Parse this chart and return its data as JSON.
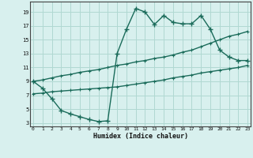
{
  "line1_x": [
    0,
    1,
    2,
    3,
    4,
    5,
    6,
    7,
    8,
    9,
    10,
    11,
    12,
    13,
    14,
    15,
    16,
    17,
    18,
    19,
    20,
    21,
    22,
    23
  ],
  "line1_y": [
    9,
    8,
    6.5,
    4.8,
    4.3,
    3.9,
    3.5,
    3.2,
    3.3,
    13.0,
    16.5,
    19.5,
    19.0,
    17.2,
    18.5,
    17.5,
    17.3,
    17.3,
    18.5,
    16.5,
    13.5,
    12.5,
    12.0,
    12.0
  ],
  "line2_x": [
    0,
    1,
    2,
    3,
    4,
    5,
    6,
    7,
    8,
    9,
    10,
    11,
    12,
    13,
    14,
    15,
    16,
    17,
    18,
    19,
    20,
    21,
    22,
    23
  ],
  "line2_y": [
    9.0,
    9.2,
    9.5,
    9.8,
    10.0,
    10.3,
    10.5,
    10.7,
    11.0,
    11.3,
    11.5,
    11.8,
    12.0,
    12.3,
    12.5,
    12.8,
    13.2,
    13.5,
    14.0,
    14.5,
    15.0,
    15.5,
    15.8,
    16.2
  ],
  "line3_x": [
    0,
    1,
    2,
    3,
    4,
    5,
    6,
    7,
    8,
    9,
    10,
    11,
    12,
    13,
    14,
    15,
    16,
    17,
    18,
    19,
    20,
    21,
    22,
    23
  ],
  "line3_y": [
    7.2,
    7.3,
    7.5,
    7.6,
    7.7,
    7.8,
    7.9,
    8.0,
    8.1,
    8.2,
    8.4,
    8.6,
    8.8,
    9.0,
    9.2,
    9.5,
    9.7,
    9.9,
    10.2,
    10.4,
    10.6,
    10.8,
    11.0,
    11.3
  ],
  "line_color": "#1a6b5a",
  "bg_color": "#d8f0ee",
  "grid_color": "#b0d8d2",
  "xlabel": "Humidex (Indice chaleur)",
  "xticks": [
    0,
    1,
    2,
    3,
    4,
    5,
    6,
    7,
    8,
    9,
    10,
    11,
    12,
    13,
    14,
    15,
    16,
    17,
    18,
    19,
    20,
    21,
    22,
    23
  ],
  "yticks": [
    3,
    5,
    7,
    9,
    11,
    13,
    15,
    17,
    19
  ],
  "xlim": [
    -0.3,
    23.3
  ],
  "ylim": [
    2.5,
    20.5
  ],
  "marker1": "+",
  "marker2": "+",
  "markersize1": 4.0,
  "markersize2": 2.5,
  "linewidth": 1.0
}
